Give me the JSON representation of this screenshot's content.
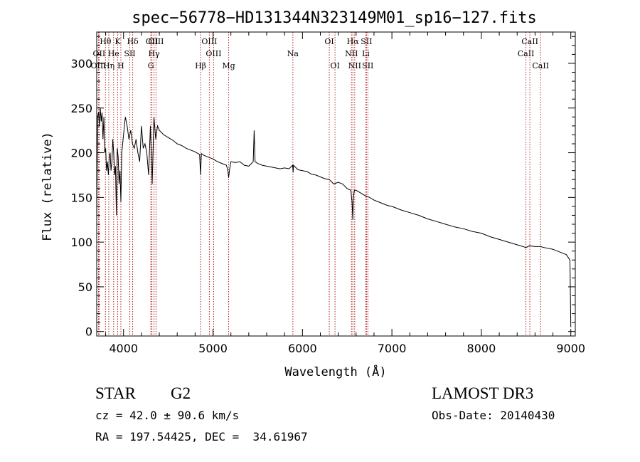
{
  "chart_data": {
    "type": "line",
    "title": "spec−56778−HD131344N323149M01_sp16−127.fits",
    "xlabel": "Wavelength (Å)",
    "ylabel": "Flux (relative)",
    "xlim": [
      3700,
      9050
    ],
    "ylim": [
      -5,
      335
    ],
    "xticks": [
      4000,
      5000,
      6000,
      7000,
      8000,
      9000
    ],
    "yticks": [
      0,
      50,
      100,
      150,
      200,
      250,
      300
    ],
    "grid": false,
    "series": [
      {
        "name": "flux",
        "x": [
          3700,
          3710,
          3720,
          3730,
          3740,
          3750,
          3760,
          3770,
          3780,
          3790,
          3800,
          3810,
          3820,
          3830,
          3840,
          3850,
          3860,
          3870,
          3880,
          3890,
          3900,
          3910,
          3920,
          3930,
          3940,
          3950,
          3960,
          3970,
          3980,
          3990,
          4000,
          4020,
          4040,
          4060,
          4080,
          4100,
          4120,
          4140,
          4160,
          4180,
          4200,
          4220,
          4240,
          4260,
          4280,
          4300,
          4320,
          4340,
          4360,
          4380,
          4400,
          4450,
          4500,
          4550,
          4600,
          4650,
          4700,
          4750,
          4800,
          4850,
          4861,
          4870,
          4900,
          4950,
          5000,
          5050,
          5100,
          5150,
          5167,
          5175,
          5183,
          5200,
          5250,
          5300,
          5350,
          5400,
          5450,
          5460,
          5470,
          5500,
          5550,
          5600,
          5650,
          5700,
          5750,
          5800,
          5850,
          5890,
          5896,
          5900,
          5950,
          6000,
          6050,
          6100,
          6150,
          6200,
          6250,
          6300,
          6350,
          6400,
          6450,
          6500,
          6540,
          6555,
          6563,
          6570,
          6580,
          6600,
          6650,
          6700,
          6750,
          6800,
          6850,
          6900,
          6950,
          7000,
          7100,
          7200,
          7300,
          7400,
          7500,
          7600,
          7700,
          7800,
          7900,
          8000,
          8100,
          8200,
          8300,
          8400,
          8500,
          8540,
          8600,
          8662,
          8700,
          8800,
          8900,
          8950,
          8990,
          9000
        ],
        "values": [
          120,
          240,
          245,
          230,
          250,
          235,
          245,
          215,
          240,
          200,
          205,
          180,
          190,
          175,
          195,
          200,
          180,
          190,
          215,
          200,
          175,
          185,
          130,
          205,
          195,
          165,
          180,
          145,
          200,
          210,
          220,
          240,
          230,
          215,
          225,
          210,
          205,
          215,
          200,
          190,
          230,
          205,
          210,
          200,
          175,
          230,
          165,
          240,
          215,
          230,
          225,
          220,
          217,
          214,
          210,
          208,
          205,
          203,
          201,
          198,
          175,
          199,
          197,
          195,
          193,
          190,
          188,
          186,
          180,
          172,
          180,
          190,
          189,
          190,
          186,
          185,
          190,
          225,
          190,
          188,
          186,
          185,
          184,
          183,
          182,
          183,
          182,
          186,
          178,
          186,
          181,
          180,
          179,
          176,
          175,
          173,
          171,
          170,
          165,
          167,
          165,
          160,
          158,
          145,
          125,
          150,
          158,
          158,
          155,
          152,
          150,
          147,
          145,
          143,
          141,
          140,
          136,
          133,
          130,
          126,
          123,
          120,
          117,
          115,
          112,
          110,
          106,
          103,
          100,
          97,
          94,
          96,
          95,
          95,
          94,
          92,
          88,
          86,
          80,
          5
        ]
      }
    ],
    "lines": [
      {
        "label": "Hθ",
        "x": 3798,
        "row": 1
      },
      {
        "label": "OII",
        "x": 3727,
        "row": 2
      },
      {
        "label": "OIII",
        "x": 3720,
        "row": 3
      },
      {
        "label": "Hη",
        "x": 3835,
        "row": 3
      },
      {
        "label": "He",
        "x": 3889,
        "row": 2
      },
      {
        "label": "K",
        "x": 3934,
        "row": 1
      },
      {
        "label": "H",
        "x": 3970,
        "row": 3
      },
      {
        "label": "SII",
        "x": 4070,
        "row": 2
      },
      {
        "label": "Hδ",
        "x": 4102,
        "row": 1
      },
      {
        "label": "OII",
        "x": 4317,
        "row": 1
      },
      {
        "label": "Hγ",
        "x": 4341,
        "row": 2
      },
      {
        "label": "G",
        "x": 4305,
        "row": 3
      },
      {
        "label": "OIII",
        "x": 4363,
        "row": 1
      },
      {
        "label": "Hβ",
        "x": 4861,
        "row": 3
      },
      {
        "label": "OIII",
        "x": 4959,
        "row": 1
      },
      {
        "label": "OIII",
        "x": 5007,
        "row": 2
      },
      {
        "label": "Mg",
        "x": 5175,
        "row": 3
      },
      {
        "label": "Na",
        "x": 5893,
        "row": 2
      },
      {
        "label": "OI",
        "x": 6300,
        "row": 1
      },
      {
        "label": "OI",
        "x": 6364,
        "row": 3
      },
      {
        "label": "Hα",
        "x": 6563,
        "row": 1
      },
      {
        "label": "NII",
        "x": 6548,
        "row": 2
      },
      {
        "label": "NII",
        "x": 6584,
        "row": 3
      },
      {
        "label": "SII",
        "x": 6716,
        "row": 1
      },
      {
        "label": "Li",
        "x": 6708,
        "row": 2
      },
      {
        "label": "SII",
        "x": 6731,
        "row": 3
      },
      {
        "label": "CaII",
        "x": 8542,
        "row": 1
      },
      {
        "label": "CaII",
        "x": 8498,
        "row": 2
      },
      {
        "label": "CaII",
        "x": 8662,
        "row": 3
      }
    ]
  },
  "info": {
    "object_class": "STAR",
    "subclass": "G2",
    "redshift": "cz = 42.0 ± 90.6 km/s",
    "coords": "RA = 197.54425, DEC =  34.61967",
    "survey": "LAMOST DR3",
    "obs_date": "Obs-Date: 20140430"
  }
}
